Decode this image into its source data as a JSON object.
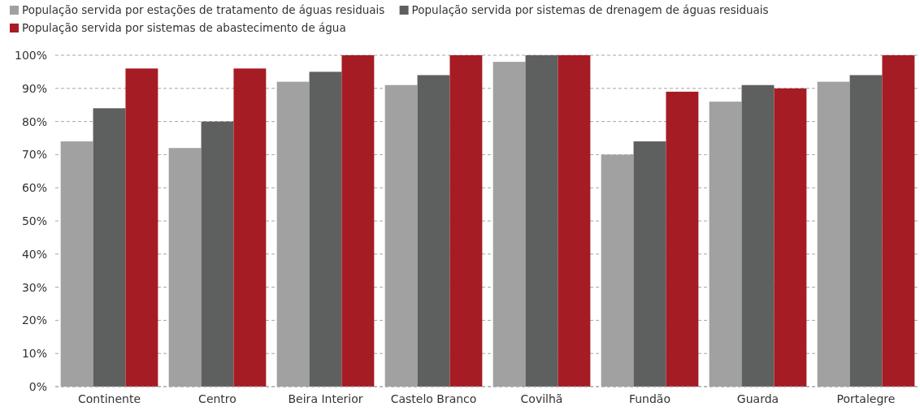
{
  "chart_data": {
    "type": "bar",
    "categories": [
      "Continente",
      "Centro",
      "Beira Interior",
      "Castelo Branco",
      "Covilhã",
      "Fundão",
      "Guarda",
      "Portalegre"
    ],
    "series": [
      {
        "name": "População servida por estações de tratamento de águas residuais",
        "color": "#a0a1a0",
        "values": [
          74,
          72,
          92,
          91,
          98,
          70,
          86,
          92
        ]
      },
      {
        "name": "População servida por sistemas de drenagem de águas residuais",
        "color": "#5e605f",
        "values": [
          84,
          80,
          95,
          94,
          100,
          74,
          91,
          94
        ]
      },
      {
        "name": "População servida por sistemas de abastecimento de água",
        "color": "#a61c24",
        "values": [
          96,
          96,
          100,
          100,
          100,
          89,
          90,
          100
        ]
      }
    ],
    "ylim": [
      0,
      100
    ],
    "yticks": [
      {
        "value": 0,
        "label": "0%"
      },
      {
        "value": 10,
        "label": "10%"
      },
      {
        "value": 20,
        "label": "20%"
      },
      {
        "value": 30,
        "label": "30%"
      },
      {
        "value": 40,
        "label": "40%"
      },
      {
        "value": 50,
        "label": "50%"
      },
      {
        "value": 60,
        "label": "60%"
      },
      {
        "value": 70,
        "label": "70%"
      },
      {
        "value": 80,
        "label": "80%"
      },
      {
        "value": 90,
        "label": "90%"
      },
      {
        "value": 100,
        "label": "100%"
      }
    ],
    "grid": "y",
    "legend": "top left"
  }
}
